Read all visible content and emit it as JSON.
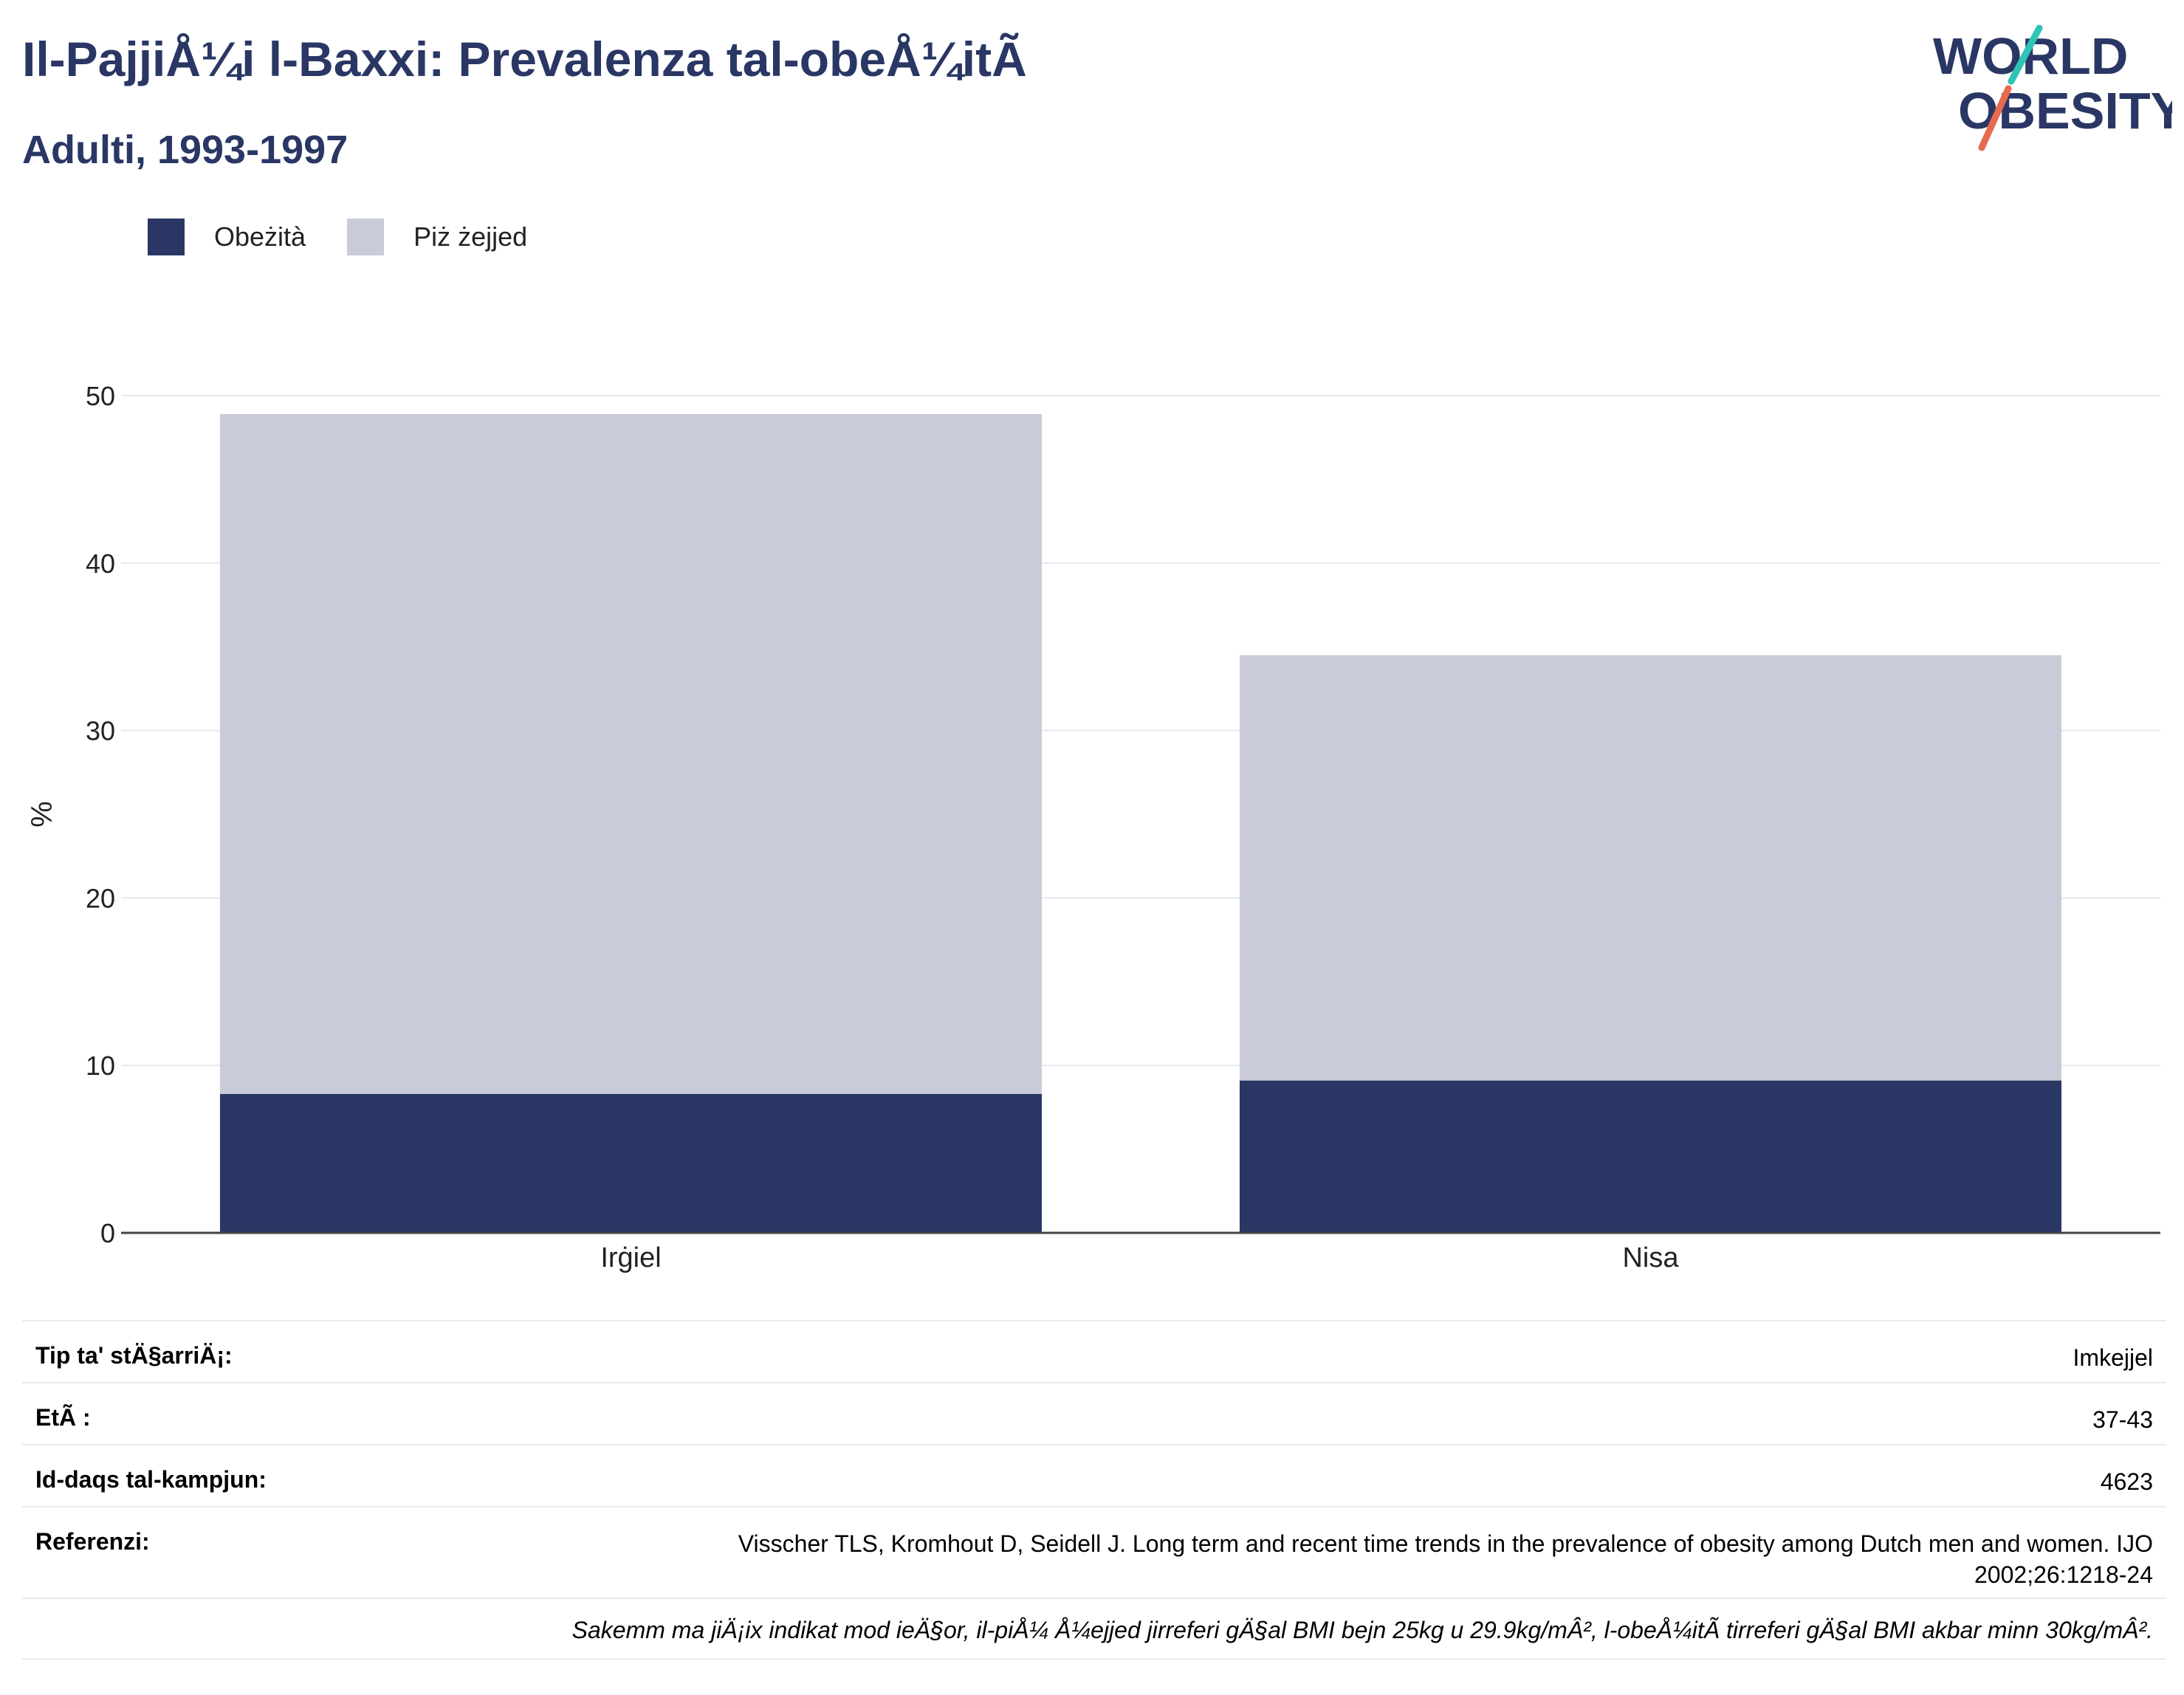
{
  "header": {
    "title": "Il-PajjiÅ¼i l-Baxxi: Prevalenza tal-obeÅ¼itÃ",
    "subtitle": "Adulti, 1993-1997"
  },
  "logo": {
    "line1": "WORLD",
    "line2": "OBESITY",
    "accent_colors": [
      "#2ec4b6",
      "#e86a50"
    ]
  },
  "legend": [
    {
      "label": "Obeżità",
      "color": "#2a3765"
    },
    {
      "label": "Piż żejjed",
      "color": "#c9ccd8"
    }
  ],
  "chart_data": {
    "type": "bar",
    "stacked": true,
    "categories": [
      "Irġiel",
      "Nisa"
    ],
    "series": [
      {
        "name": "Obeżità",
        "values": [
          8.3,
          9.1
        ],
        "color": "#2a3765"
      },
      {
        "name": "Piż żejjed",
        "values": [
          40.6,
          25.4
        ],
        "color": "#c9ccd8"
      }
    ],
    "ylabel": "%",
    "ylim": [
      0,
      50
    ],
    "yticks": [
      0,
      10,
      20,
      30,
      40,
      50
    ],
    "grid": true
  },
  "info": {
    "rows": [
      {
        "label": "Tip ta' stÄ§arriÄ¡:",
        "value": "Imkejjel"
      },
      {
        "label": "EtÃ :",
        "value": "37-43"
      },
      {
        "label": "Id-daqs tal-kampjun:",
        "value": "4623"
      },
      {
        "label": "Referenzi:",
        "value": "Visscher TLS, Kromhout D, Seidell J. Long term and recent time trends in the prevalence of obesity among Dutch men and women. IJO 2002;26:1218-24"
      }
    ],
    "note": "Sakemm ma jiÄ¡ix indikat mod ieÄ§or, il-piÅ¼ Å¼ejjed jirreferi gÄ§al BMI bejn 25kg u 29.9kg/mÂ², l-obeÅ¼itÃ  tirreferi gÄ§al BMI akbar minn 30kg/mÂ²."
  }
}
